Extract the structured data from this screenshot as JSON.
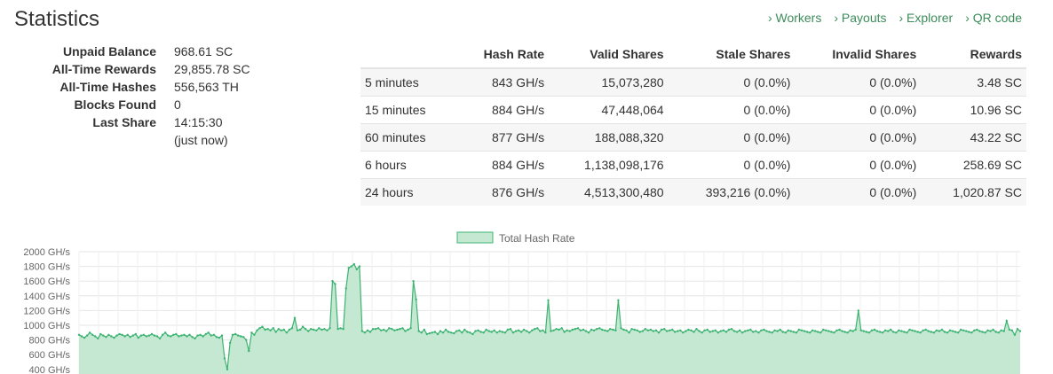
{
  "page": {
    "title": "Statistics"
  },
  "nav": {
    "links": [
      {
        "label": "› Workers"
      },
      {
        "label": "› Payouts"
      },
      {
        "label": "› Explorer"
      },
      {
        "label": "› QR code"
      }
    ]
  },
  "summary": [
    {
      "label": "Unpaid Balance",
      "value": "968.61 SC"
    },
    {
      "label": "All-Time Rewards",
      "value": "29,855.78 SC"
    },
    {
      "label": "All-Time Hashes",
      "value": "556,563 TH"
    },
    {
      "label": "Blocks Found",
      "value": "0"
    },
    {
      "label": "Last Share",
      "value": "14:15:30"
    },
    {
      "label": "",
      "value": "(just now)"
    }
  ],
  "table": {
    "headers": [
      "",
      "Hash Rate",
      "Valid Shares",
      "Stale Shares",
      "Invalid Shares",
      "Rewards"
    ],
    "rows": [
      [
        "5 minutes",
        "843 GH/s",
        "15,073,280",
        "0 (0.0%)",
        "0 (0.0%)",
        "3.48 SC"
      ],
      [
        "15 minutes",
        "884 GH/s",
        "47,448,064",
        "0 (0.0%)",
        "0 (0.0%)",
        "10.96 SC"
      ],
      [
        "60 minutes",
        "877 GH/s",
        "188,088,320",
        "0 (0.0%)",
        "0 (0.0%)",
        "43.22 SC"
      ],
      [
        "6 hours",
        "884 GH/s",
        "1,138,098,176",
        "0 (0.0%)",
        "0 (0.0%)",
        "258.69 SC"
      ],
      [
        "24 hours",
        "876 GH/s",
        "4,513,300,480",
        "393,216 (0.0%)",
        "0 (0.0%)",
        "1,020.87 SC"
      ]
    ]
  },
  "colors": {
    "accent": "#3c8d5a",
    "series_line": "#3cb371",
    "series_fill": "#c5e8d3"
  },
  "chart_data": {
    "type": "area",
    "title": "",
    "xlabel": "",
    "ylabel": "",
    "legend": "top-center",
    "grid": true,
    "yticks": [
      "400 GH/s",
      "600 GH/s",
      "800 GH/s",
      "1000 GH/s",
      "1200 GH/s",
      "1400 GH/s",
      "1600 GH/s",
      "1800 GH/s",
      "2000 GH/s"
    ],
    "series": [
      {
        "name": "Total Hash Rate",
        "values": [
          870,
          850,
          830,
          860,
          900,
          870,
          850,
          820,
          880,
          860,
          840,
          870,
          850,
          830,
          860,
          880,
          870,
          850,
          870,
          840,
          860,
          880,
          830,
          860,
          870,
          850,
          860,
          880,
          860,
          850,
          820,
          870,
          900,
          860,
          850,
          870,
          880,
          850,
          860,
          870,
          850,
          870,
          840,
          820,
          860,
          870,
          850,
          880,
          900,
          860,
          870,
          840,
          830,
          860,
          550,
          400,
          760,
          870,
          880,
          860,
          850,
          840,
          800,
          650,
          900,
          870,
          930,
          960,
          980,
          940,
          950,
          930,
          960,
          910,
          950,
          930,
          940,
          900,
          940,
          960,
          1100,
          930,
          940,
          980,
          950,
          920,
          950,
          940,
          930,
          960,
          940,
          950,
          930,
          960,
          1600,
          1560,
          950,
          960,
          950,
          1500,
          1780,
          1800,
          1830,
          1760,
          1800,
          920,
          900,
          930,
          910,
          950,
          950,
          960,
          930,
          940,
          920,
          960,
          950,
          930,
          940,
          950,
          960,
          920,
          940,
          960,
          1600,
          1350,
          920,
          900,
          940,
          880,
          890,
          900,
          910,
          880,
          920,
          900,
          940,
          910,
          900,
          890,
          920,
          930,
          900,
          940,
          910,
          900,
          880,
          920,
          930,
          910,
          900,
          940,
          920,
          910,
          930,
          900,
          920,
          910,
          900,
          940,
          950,
          900,
          920,
          930,
          910,
          940,
          920,
          900,
          930,
          950,
          960,
          920,
          930,
          900,
          1340,
          920,
          930,
          950,
          940,
          960,
          910,
          930,
          920,
          940,
          950,
          960,
          930,
          940,
          920,
          900,
          940,
          930,
          950,
          960,
          940,
          930,
          920,
          950,
          940,
          930,
          1340,
          960,
          940,
          930,
          900,
          950,
          940,
          930,
          910,
          920,
          950,
          930,
          940,
          920,
          930,
          900,
          940,
          950,
          920,
          930,
          940,
          910,
          920,
          930,
          900,
          920,
          940,
          930,
          910,
          950,
          920,
          900,
          930,
          940,
          910,
          920,
          930,
          900,
          920,
          930,
          910,
          940,
          950,
          920,
          910,
          930,
          900,
          920,
          930,
          940,
          910,
          920,
          900,
          930,
          940,
          920,
          910,
          900,
          930,
          920,
          940,
          910,
          900,
          930,
          920,
          910,
          900,
          940,
          930,
          920,
          910,
          900,
          930,
          920,
          910,
          900,
          940,
          930,
          920,
          910,
          900,
          930,
          940,
          920,
          910,
          900,
          930,
          920,
          940,
          1200,
          930,
          920,
          910,
          900,
          930,
          940,
          920,
          910,
          900,
          930,
          920,
          940,
          910,
          900,
          930,
          920,
          910,
          900,
          940,
          930,
          920,
          910,
          900,
          930,
          940,
          920,
          910,
          900,
          930,
          920,
          940,
          910,
          900,
          930,
          920,
          910,
          900,
          940,
          930,
          920,
          910,
          900,
          930,
          940,
          920,
          910,
          900,
          930,
          920,
          940,
          910,
          900,
          930,
          920,
          1060,
          940,
          930,
          870,
          950,
          920
        ]
      }
    ],
    "ylim": [
      400,
      2000
    ]
  }
}
